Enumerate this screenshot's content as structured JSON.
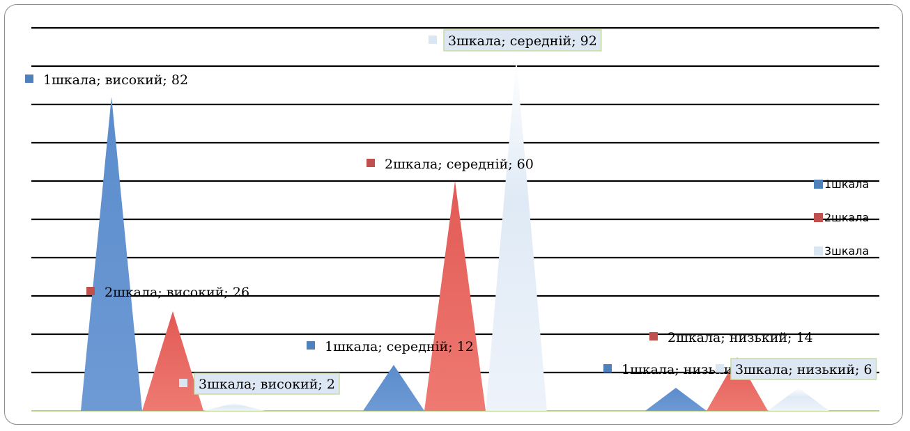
{
  "chart_data": {
    "type": "bar",
    "categories": [
      "високий",
      "середній",
      "низький"
    ],
    "series": [
      {
        "name": "1шкала",
        "values": [
          82,
          12,
          6
        ],
        "color": "#4f81bd"
      },
      {
        "name": "2шкала",
        "values": [
          26,
          60,
          14
        ],
        "color": "#e0504a"
      },
      {
        "name": "3шкала",
        "values": [
          2,
          92,
          6
        ],
        "color": "#dbe6f3"
      }
    ],
    "data_labels": [
      "1шкала; високий; 82",
      "2шкала; високий; 26",
      "3шкала; високий; 2",
      "1шкала; середній; 12",
      "2шкала; середній; 60",
      "3шкала; середній; 92",
      "1шкала; низький; 6",
      "2шкала; низький; 14",
      "3шкала; низький; 6"
    ],
    "ylim": [
      0,
      100
    ],
    "grid": true,
    "legend_position": "right",
    "bar_shape": "triangle"
  }
}
